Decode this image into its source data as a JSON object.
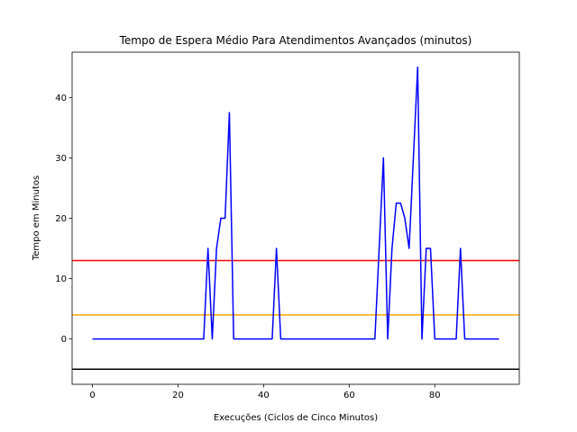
{
  "chart_data": {
    "type": "line",
    "title": "Tempo de Espera Médio Para Atendimentos Avançados (minutos)",
    "xlabel": "Execuções (Ciclos de Cinco Minutos)",
    "ylabel": "Tempo em Minutos",
    "xlim": [
      -4.75,
      99.75
    ],
    "ylim": [
      -7.5,
      47.5
    ],
    "xticks": [
      0,
      20,
      40,
      60,
      80
    ],
    "yticks": [
      0,
      10,
      20,
      30,
      40
    ],
    "grid": false,
    "series": [
      {
        "color": "#0000ff",
        "points": [
          [
            0,
            0
          ],
          [
            26,
            0
          ],
          [
            27,
            15
          ],
          [
            28,
            0
          ],
          [
            29,
            15
          ],
          [
            30,
            20
          ],
          [
            31,
            20
          ],
          [
            32,
            37.5
          ],
          [
            33,
            0
          ],
          [
            42,
            0
          ],
          [
            43,
            15
          ],
          [
            44,
            0
          ],
          [
            66,
            0
          ],
          [
            68,
            30
          ],
          [
            69,
            0
          ],
          [
            70,
            15
          ],
          [
            71,
            22.5
          ],
          [
            72,
            22.5
          ],
          [
            73,
            20
          ],
          [
            74,
            15
          ],
          [
            76,
            45
          ],
          [
            77,
            0
          ],
          [
            78,
            15
          ],
          [
            79,
            15
          ],
          [
            80,
            0
          ],
          [
            85,
            0
          ],
          [
            86,
            15
          ],
          [
            87,
            0
          ],
          [
            95,
            0
          ]
        ]
      }
    ],
    "hlines": [
      {
        "y": 13,
        "color": "#ff0000"
      },
      {
        "y": 4,
        "color": "#ffa500"
      },
      {
        "y": -5,
        "color": "#000000"
      }
    ]
  }
}
